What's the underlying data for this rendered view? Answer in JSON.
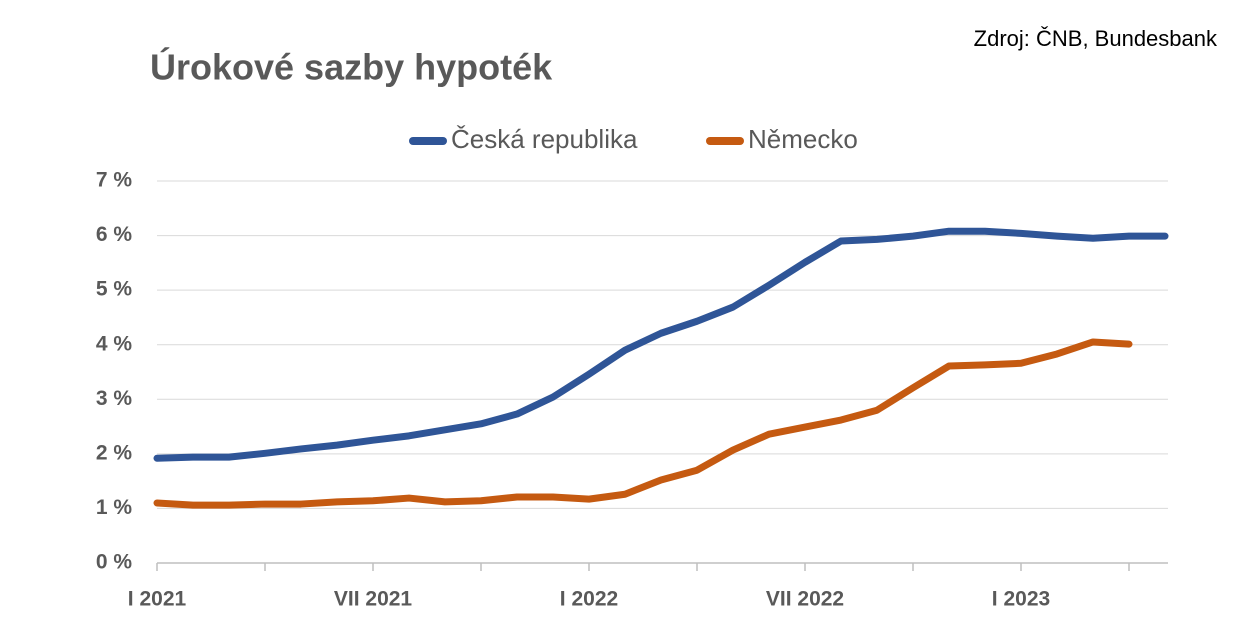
{
  "chart_data": {
    "type": "line",
    "title": "Úrokové sazby hypoték",
    "source": "Zdroj: ČNB, Bundesbank",
    "categories": [
      "I 2021",
      null,
      null,
      null,
      null,
      null,
      "VII 2021",
      null,
      null,
      null,
      null,
      null,
      "I 2022",
      null,
      null,
      null,
      null,
      null,
      "VII 2022",
      null,
      null,
      null,
      null,
      null,
      "I 2023",
      null,
      null,
      null,
      null
    ],
    "series": [
      {
        "name": "Česká republika",
        "color": "#2f5597",
        "values": [
          1.92,
          1.94,
          1.94,
          2.01,
          2.09,
          2.16,
          2.25,
          2.33,
          2.44,
          2.55,
          2.73,
          3.04,
          3.46,
          3.9,
          4.21,
          4.43,
          4.69,
          5.09,
          5.51,
          5.9,
          5.93,
          5.99,
          6.08,
          6.08,
          6.04,
          5.99,
          5.95,
          5.99,
          5.99
        ]
      },
      {
        "name": "Německo",
        "color": "#c55a11",
        "values": [
          1.1,
          1.06,
          1.06,
          1.08,
          1.08,
          1.12,
          1.14,
          1.19,
          1.12,
          1.14,
          1.21,
          1.21,
          1.17,
          1.26,
          1.52,
          1.7,
          2.07,
          2.36,
          2.49,
          2.62,
          2.8,
          3.21,
          3.61,
          3.63,
          3.66,
          3.83,
          4.05,
          4.01,
          null
        ]
      }
    ],
    "ylim": [
      0,
      7
    ],
    "yticks": [
      {
        "value": 0,
        "label": "0 %"
      },
      {
        "value": 1,
        "label": "1 %"
      },
      {
        "value": 2,
        "label": "2 %"
      },
      {
        "value": 3,
        "label": "3 %"
      },
      {
        "value": 4,
        "label": "4 %"
      },
      {
        "value": 5,
        "label": "5 %"
      },
      {
        "value": 6,
        "label": "6 %"
      },
      {
        "value": 7,
        "label": "7 %"
      }
    ],
    "grid": true,
    "legend": "top"
  }
}
